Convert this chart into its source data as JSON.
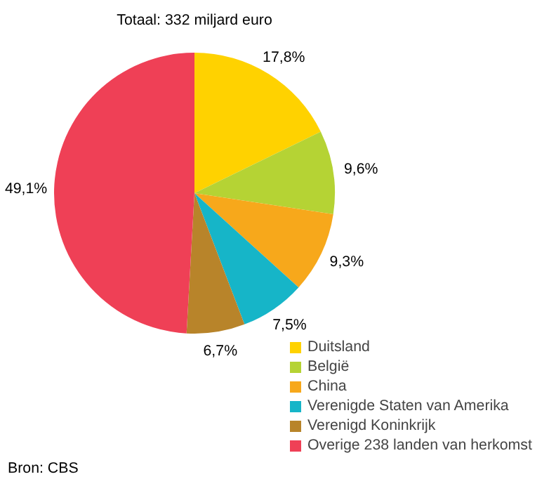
{
  "chart_data": {
    "type": "pie",
    "title": "Totaal: 332 miljard euro",
    "categories": [
      "Duitsland",
      "België",
      "China",
      "Verenigde Staten van Amerika",
      "Verenigd Koninkrijk",
      "Overige 238 landen van herkomst"
    ],
    "values": [
      17.8,
      9.6,
      9.3,
      7.5,
      6.7,
      49.1
    ],
    "colors": [
      "#ffd200",
      "#b5d334",
      "#f7a81b",
      "#16b5c8",
      "#b8842a",
      "#ef4056"
    ],
    "value_labels": [
      "17,8%",
      "9,6%",
      "9,3%",
      "7,5%",
      "6,7%",
      "49,1%"
    ],
    "legend": "bottom right",
    "annotations": [
      "Bron: CBS"
    ]
  }
}
